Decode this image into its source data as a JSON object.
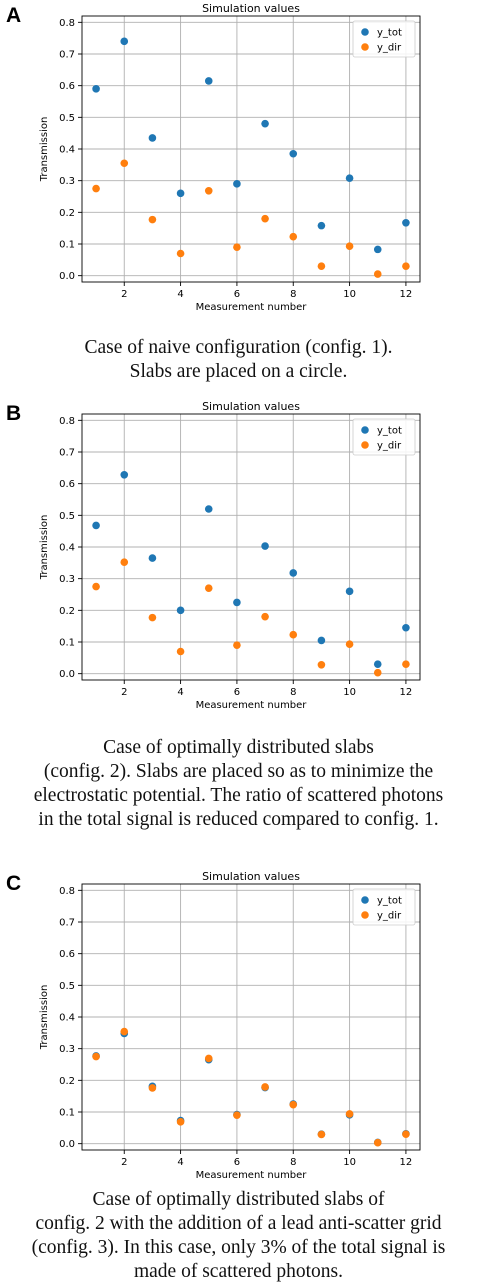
{
  "panels": [
    {
      "letter": "A",
      "caption": [
        "Case of naive configuration (config. 1).",
        "Slabs are placed on a circle."
      ]
    },
    {
      "letter": "B",
      "caption": [
        "Case of optimally distributed slabs",
        "(config. 2). Slabs are placed so as to minimize the",
        "electrostatic potential. The ratio of scattered photons",
        "in the total signal is reduced compared to config. 1."
      ]
    },
    {
      "letter": "C",
      "caption": [
        "Case of optimally distributed slabs of",
        "config. 2 with the addition of a lead anti-scatter grid",
        "(config. 3). In this case, only 3% of the total signal is",
        "made of scattered photons."
      ]
    }
  ],
  "colors": {
    "y_tot": "#1f77b4",
    "y_dir": "#ff7f0e",
    "grid": "#b0b0b0"
  },
  "chart_data": [
    {
      "type": "scatter",
      "title": "Simulation values",
      "xlabel": "Measurement number",
      "ylabel": "Transmission",
      "x": [
        1,
        2,
        3,
        4,
        5,
        6,
        7,
        8,
        9,
        10,
        11,
        12
      ],
      "xticks": [
        2,
        4,
        6,
        8,
        10,
        12
      ],
      "yticks": [
        0.0,
        0.1,
        0.2,
        0.3,
        0.4,
        0.5,
        0.6,
        0.7,
        0.8
      ],
      "ytick_labels": [
        "0.0",
        "0.1",
        "0.2",
        "0.3",
        "0.4",
        "0.5",
        "0.6",
        "0.7",
        "0.8"
      ],
      "xlim": [
        0.5,
        12.5
      ],
      "ylim": [
        -0.02,
        0.82
      ],
      "grid": true,
      "legend": "top-right",
      "series": [
        {
          "name": "y_tot",
          "values": [
            0.59,
            0.74,
            0.435,
            0.26,
            0.615,
            0.29,
            0.48,
            0.385,
            0.158,
            0.308,
            0.083,
            0.167
          ]
        },
        {
          "name": "y_dir",
          "values": [
            0.275,
            0.355,
            0.177,
            0.07,
            0.268,
            0.09,
            0.18,
            0.123,
            0.03,
            0.093,
            0.005,
            0.03
          ]
        }
      ]
    },
    {
      "type": "scatter",
      "title": "Simulation values",
      "xlabel": "Measurement number",
      "ylabel": "Transmission",
      "x": [
        1,
        2,
        3,
        4,
        5,
        6,
        7,
        8,
        9,
        10,
        11,
        12
      ],
      "xticks": [
        2,
        4,
        6,
        8,
        10,
        12
      ],
      "yticks": [
        0.0,
        0.1,
        0.2,
        0.3,
        0.4,
        0.5,
        0.6,
        0.7,
        0.8
      ],
      "ytick_labels": [
        "0.0",
        "0.1",
        "0.2",
        "0.3",
        "0.4",
        "0.5",
        "0.6",
        "0.7",
        "0.8"
      ],
      "xlim": [
        0.5,
        12.5
      ],
      "ylim": [
        -0.02,
        0.82
      ],
      "grid": true,
      "legend": "top-right",
      "series": [
        {
          "name": "y_tot",
          "values": [
            0.468,
            0.628,
            0.365,
            0.2,
            0.52,
            0.225,
            0.403,
            0.318,
            0.105,
            0.26,
            0.03,
            0.145
          ]
        },
        {
          "name": "y_dir",
          "values": [
            0.275,
            0.352,
            0.177,
            0.07,
            0.27,
            0.09,
            0.18,
            0.123,
            0.028,
            0.093,
            0.003,
            0.03
          ]
        }
      ]
    },
    {
      "type": "scatter",
      "title": "Simulation values",
      "xlabel": "Measurement number",
      "ylabel": "Transmission",
      "x": [
        1,
        2,
        3,
        4,
        5,
        6,
        7,
        8,
        9,
        10,
        11,
        12
      ],
      "xticks": [
        2,
        4,
        6,
        8,
        10,
        12
      ],
      "yticks": [
        0.0,
        0.1,
        0.2,
        0.3,
        0.4,
        0.5,
        0.6,
        0.7,
        0.8
      ],
      "ytick_labels": [
        "0.0",
        "0.1",
        "0.2",
        "0.3",
        "0.4",
        "0.5",
        "0.6",
        "0.7",
        "0.8"
      ],
      "xlim": [
        0.5,
        12.5
      ],
      "ylim": [
        -0.02,
        0.82
      ],
      "grid": true,
      "legend": "top-right",
      "series": [
        {
          "name": "y_tot",
          "values": [
            0.277,
            0.348,
            0.181,
            0.073,
            0.265,
            0.092,
            0.177,
            0.125,
            0.03,
            0.091,
            0.004,
            0.031
          ]
        },
        {
          "name": "y_dir",
          "values": [
            0.275,
            0.354,
            0.176,
            0.069,
            0.269,
            0.09,
            0.179,
            0.123,
            0.029,
            0.094,
            0.003,
            0.03
          ]
        }
      ]
    }
  ]
}
